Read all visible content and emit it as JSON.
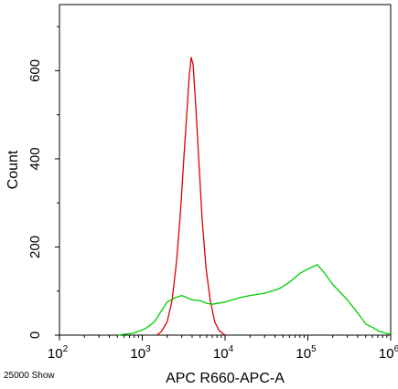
{
  "chart_data": {
    "type": "line",
    "title": "",
    "xlabel": "APC R660-APC-A",
    "ylabel": "Count",
    "x_scale": "log10",
    "xlim": [
      100,
      1000000
    ],
    "ylim": [
      0,
      750
    ],
    "grid": false,
    "legend": "none",
    "x_ticks": [
      {
        "value": 100,
        "base": "10",
        "exp": "2"
      },
      {
        "value": 1000,
        "base": "10",
        "exp": "3"
      },
      {
        "value": 10000,
        "base": "10",
        "exp": "4"
      },
      {
        "value": 100000,
        "base": "10",
        "exp": "5"
      },
      {
        "value": 1000000,
        "base": "10",
        "exp": "6"
      }
    ],
    "y_ticks": [
      {
        "value": 0,
        "label": "0"
      },
      {
        "value": 200,
        "label": "200"
      },
      {
        "value": 400,
        "label": "400"
      },
      {
        "value": 600,
        "label": "600"
      }
    ],
    "series": [
      {
        "color": "#dd0000",
        "points": [
          [
            1500,
            0
          ],
          [
            1700,
            8
          ],
          [
            2000,
            30
          ],
          [
            2300,
            80
          ],
          [
            2600,
            170
          ],
          [
            2900,
            280
          ],
          [
            3200,
            410
          ],
          [
            3500,
            520
          ],
          [
            3700,
            590
          ],
          [
            3900,
            630
          ],
          [
            4100,
            615
          ],
          [
            4400,
            530
          ],
          [
            4800,
            400
          ],
          [
            5300,
            260
          ],
          [
            5900,
            150
          ],
          [
            6600,
            80
          ],
          [
            7500,
            30
          ],
          [
            8500,
            10
          ],
          [
            10000,
            0
          ]
        ]
      },
      {
        "color": "#00cc00",
        "points": [
          [
            500,
            0
          ],
          [
            800,
            5
          ],
          [
            1100,
            15
          ],
          [
            1400,
            30
          ],
          [
            1700,
            55
          ],
          [
            2000,
            75
          ],
          [
            2500,
            85
          ],
          [
            3000,
            90
          ],
          [
            4000,
            80
          ],
          [
            5000,
            78
          ],
          [
            6000,
            72
          ],
          [
            7000,
            70
          ],
          [
            10000,
            75
          ],
          [
            15000,
            85
          ],
          [
            20000,
            90
          ],
          [
            30000,
            95
          ],
          [
            45000,
            105
          ],
          [
            60000,
            120
          ],
          [
            80000,
            140
          ],
          [
            100000,
            150
          ],
          [
            130000,
            160
          ],
          [
            160000,
            140
          ],
          [
            200000,
            115
          ],
          [
            300000,
            80
          ],
          [
            400000,
            50
          ],
          [
            500000,
            25
          ],
          [
            600000,
            18
          ],
          [
            700000,
            10
          ],
          [
            850000,
            5
          ],
          [
            1000000,
            2
          ]
        ]
      }
    ]
  },
  "footer": {
    "note": "25000 Show"
  }
}
